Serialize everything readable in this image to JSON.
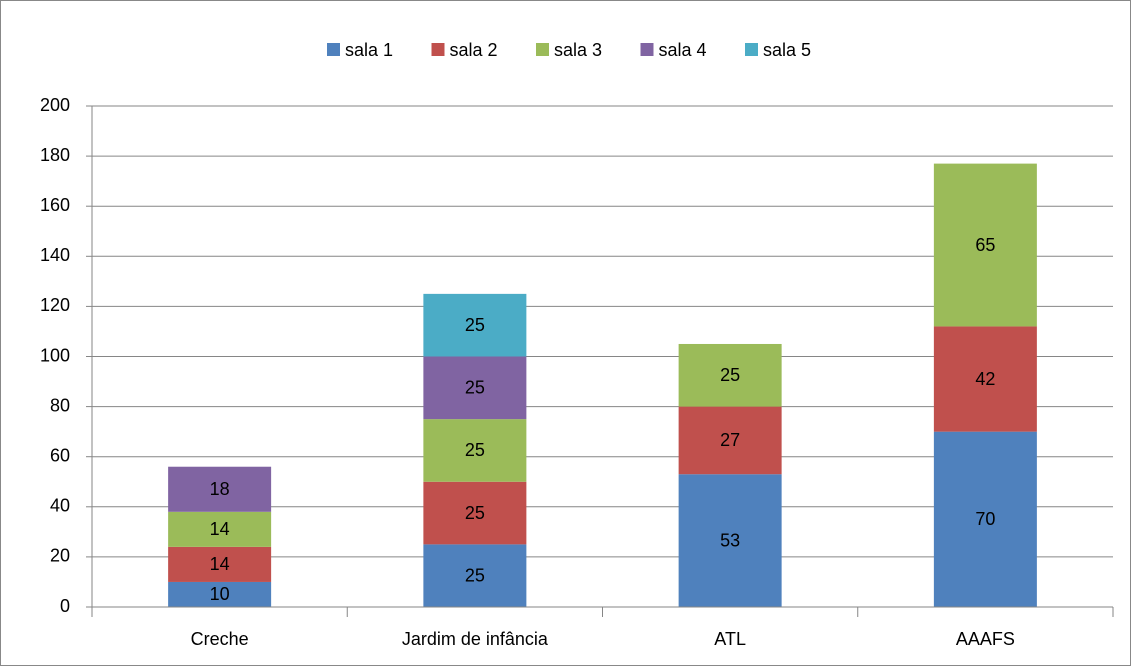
{
  "chart_data": {
    "type": "stacked_bar",
    "categories": [
      "Creche",
      "Jardim de infância",
      "ATL",
      "AAAFS"
    ],
    "series": [
      {
        "name": "sala 1",
        "color": "#4f81bd",
        "values": [
          10,
          25,
          53,
          70
        ]
      },
      {
        "name": "sala 2",
        "color": "#c0504d",
        "values": [
          14,
          25,
          27,
          42
        ]
      },
      {
        "name": "sala 3",
        "color": "#9bbb59",
        "values": [
          14,
          25,
          25,
          65
        ]
      },
      {
        "name": "sala 4",
        "color": "#8064a2",
        "values": [
          18,
          25,
          null,
          null
        ]
      },
      {
        "name": "sala 5",
        "color": "#4bacc6",
        "values": [
          null,
          25,
          null,
          null
        ]
      }
    ],
    "ylim": [
      0,
      200
    ],
    "yticks": [
      0,
      20,
      40,
      60,
      80,
      100,
      120,
      140,
      160,
      180,
      200
    ],
    "grid": true,
    "legend": "top"
  }
}
